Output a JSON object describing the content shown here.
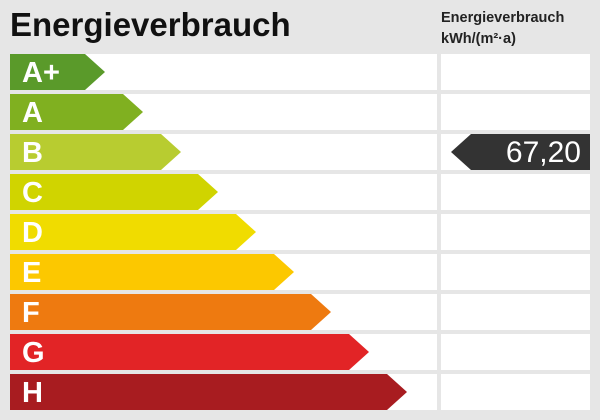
{
  "title": "Energieverbrauch",
  "unit_label": {
    "line1": "Energieverbrauch",
    "line2": "kWh/(m²·a)"
  },
  "classes": [
    {
      "label": "A+",
      "color": "#5a9a2a"
    },
    {
      "label": "A",
      "color": "#80b020"
    },
    {
      "label": "B",
      "color": "#b8cc30"
    },
    {
      "label": "C",
      "color": "#d0d400"
    },
    {
      "label": "D",
      "color": "#f0dc00"
    },
    {
      "label": "E",
      "color": "#fcc800"
    },
    {
      "label": "F",
      "color": "#ee7a10"
    },
    {
      "label": "G",
      "color": "#e22426"
    },
    {
      "label": "H",
      "color": "#a81c20"
    }
  ],
  "current": {
    "value": "67,20",
    "class": "B",
    "color": "#333333"
  }
}
